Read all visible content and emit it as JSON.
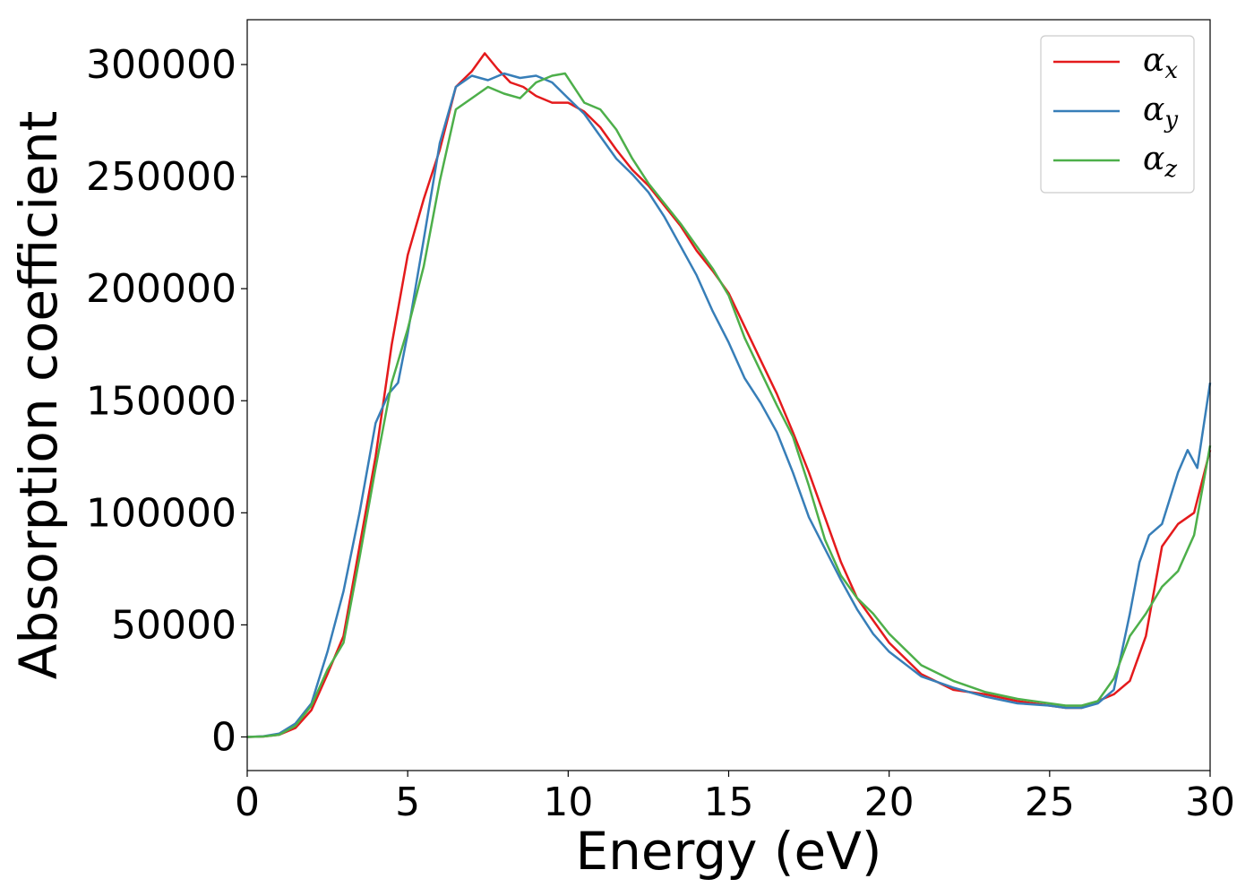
{
  "chart_data": {
    "type": "line",
    "xlabel": "Energy (eV)",
    "ylabel": "Absorption coefficient",
    "xlim": [
      0,
      30
    ],
    "ylim": [
      -15000,
      320000
    ],
    "xticks": [
      0,
      5,
      10,
      15,
      20,
      25,
      30
    ],
    "yticks": [
      0,
      50000,
      100000,
      150000,
      200000,
      250000,
      300000
    ],
    "grid": false,
    "legend_position": "top-right",
    "series": [
      {
        "name": "α",
        "subscript": "x",
        "color": "#e41a1c",
        "x": [
          0,
          0.5,
          1.0,
          1.5,
          2.0,
          2.5,
          3.0,
          3.5,
          4.0,
          4.5,
          5.0,
          5.5,
          6.0,
          6.5,
          7.0,
          7.4,
          7.8,
          8.2,
          8.6,
          9.0,
          9.5,
          10.0,
          10.5,
          11.0,
          11.5,
          12.0,
          12.5,
          13.0,
          13.5,
          14.0,
          14.5,
          15.0,
          15.5,
          16.0,
          16.5,
          17.0,
          17.5,
          18.0,
          18.5,
          19.0,
          19.5,
          20.0,
          21.0,
          22.0,
          23.0,
          24.0,
          25.0,
          25.5,
          26.0,
          26.5,
          27.0,
          27.5,
          28.0,
          28.5,
          29.0,
          29.5,
          30.0
        ],
        "y": [
          0,
          200,
          1000,
          4000,
          12000,
          28000,
          45000,
          85000,
          125000,
          175000,
          215000,
          240000,
          262000,
          290000,
          297000,
          305000,
          298000,
          292000,
          290000,
          286000,
          283000,
          283000,
          279000,
          272000,
          262000,
          253000,
          246000,
          237000,
          228000,
          217000,
          208000,
          198000,
          183000,
          168000,
          153000,
          136000,
          118000,
          98000,
          78000,
          62000,
          52000,
          42000,
          28000,
          21000,
          19000,
          16000,
          14000,
          13000,
          13000,
          16000,
          19000,
          25000,
          45000,
          85000,
          95000,
          100000,
          128000
        ]
      },
      {
        "name": "α",
        "subscript": "y",
        "color": "#377eb8",
        "x": [
          0,
          0.5,
          1.0,
          1.5,
          2.0,
          2.5,
          3.0,
          3.5,
          4.0,
          4.4,
          4.7,
          5.0,
          5.5,
          6.0,
          6.5,
          7.0,
          7.5,
          8.0,
          8.5,
          9.0,
          9.5,
          10.0,
          10.5,
          11.0,
          11.5,
          12.0,
          12.5,
          13.0,
          13.5,
          14.0,
          14.5,
          15.0,
          15.5,
          16.0,
          16.5,
          17.0,
          17.5,
          18.0,
          18.5,
          19.0,
          19.5,
          20.0,
          21.0,
          22.0,
          23.0,
          24.0,
          25.0,
          25.5,
          26.0,
          26.5,
          27.0,
          27.5,
          27.8,
          28.1,
          28.5,
          29.0,
          29.3,
          29.6,
          30.0
        ],
        "y": [
          0,
          300,
          1500,
          6000,
          15000,
          38000,
          65000,
          100000,
          140000,
          153000,
          158000,
          180000,
          222000,
          265000,
          290000,
          295000,
          293000,
          296000,
          294000,
          295000,
          292000,
          285000,
          278000,
          268000,
          258000,
          251000,
          243000,
          232000,
          219000,
          206000,
          190000,
          176000,
          160000,
          149000,
          136000,
          118000,
          98000,
          84000,
          70000,
          57000,
          46000,
          38000,
          27000,
          22000,
          18000,
          15000,
          14000,
          13000,
          13000,
          15000,
          21000,
          55000,
          78000,
          90000,
          95000,
          118000,
          128000,
          120000,
          158000
        ]
      },
      {
        "name": "α",
        "subscript": "z",
        "color": "#4daf4a",
        "x": [
          0,
          0.5,
          1.0,
          1.5,
          2.0,
          2.5,
          3.0,
          3.5,
          4.0,
          4.5,
          5.0,
          5.5,
          6.0,
          6.5,
          7.0,
          7.5,
          8.0,
          8.5,
          9.0,
          9.5,
          9.9,
          10.5,
          11.0,
          11.5,
          12.0,
          12.5,
          13.0,
          13.5,
          14.0,
          14.5,
          15.0,
          15.5,
          16.0,
          16.5,
          17.0,
          17.5,
          18.0,
          18.5,
          19.0,
          19.5,
          20.0,
          21.0,
          22.0,
          23.0,
          24.0,
          25.0,
          25.5,
          26.0,
          26.5,
          27.0,
          27.5,
          28.0,
          28.5,
          29.0,
          29.5,
          30.0
        ],
        "y": [
          0,
          200,
          1000,
          5000,
          14000,
          30000,
          42000,
          80000,
          120000,
          158000,
          182000,
          210000,
          248000,
          280000,
          285000,
          290000,
          287000,
          285000,
          292000,
          295000,
          296000,
          283000,
          280000,
          271000,
          258000,
          247000,
          238000,
          229000,
          219000,
          209000,
          197000,
          178000,
          163000,
          148000,
          134000,
          112000,
          88000,
          72000,
          62000,
          55000,
          46000,
          32000,
          25000,
          20000,
          17000,
          15000,
          14000,
          14000,
          16000,
          26000,
          45000,
          55000,
          67000,
          74000,
          90000,
          130000
        ]
      }
    ]
  }
}
